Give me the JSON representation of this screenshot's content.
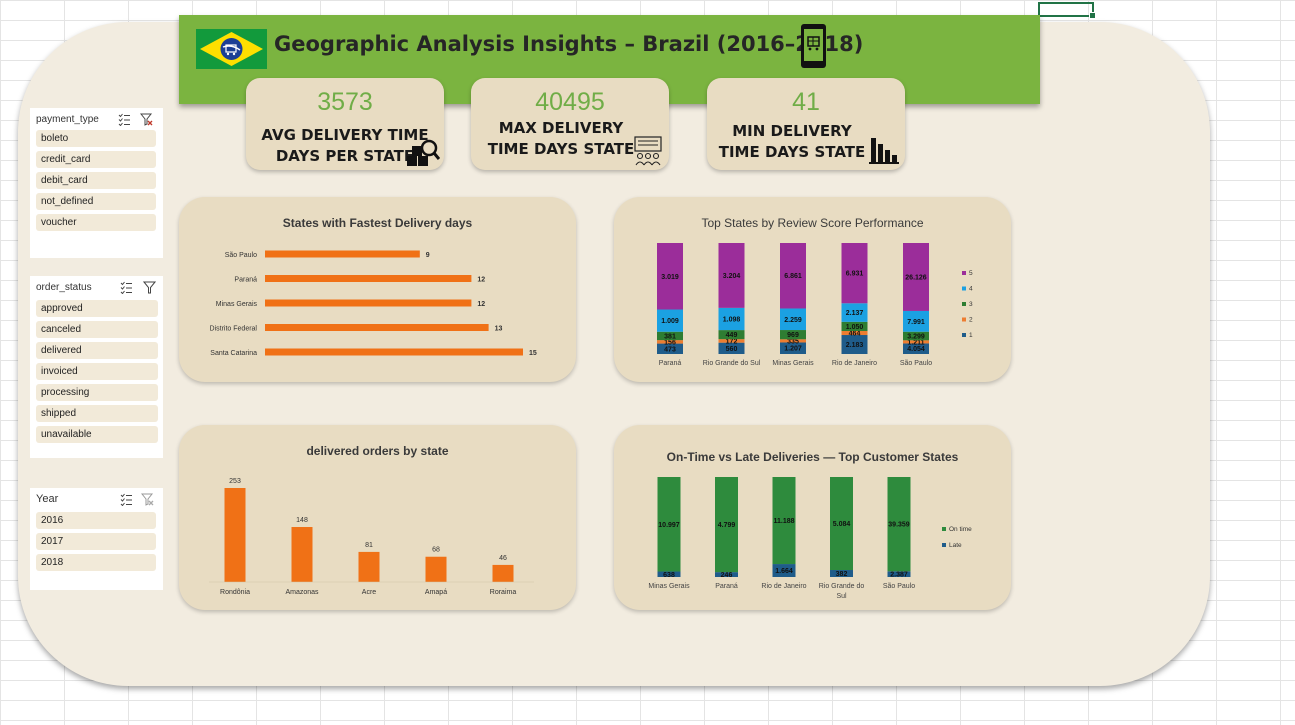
{
  "header": {
    "title": "Geographic Analysis Insights – Brazil (2016–2018)",
    "flag_icon": "brazil-flag-icon",
    "phone_icon": "mobile-shopping-icon",
    "color": "#7bb440"
  },
  "kpis": [
    {
      "value": "3573",
      "label_line1": "AVG DELIVERY TIME",
      "label_line2": "DAYS PER STATE",
      "icon": "boxes-search-icon"
    },
    {
      "value": "40495",
      "label_line1": "MAX DELIVERY",
      "label_line2": "TIME DAYS STATE",
      "icon": "presentation-group-icon"
    },
    {
      "value": "41",
      "label_line1": "MIN DELIVERY",
      "label_line2": "TIME DAYS  STATE",
      "icon": "bar-chart-decline-icon"
    }
  ],
  "slicers": {
    "payment_type": {
      "header": "payment_type",
      "items": [
        "boleto",
        "credit_card",
        "debit_card",
        "not_defined",
        "voucher"
      ]
    },
    "order_status": {
      "header": "order_status",
      "items": [
        "approved",
        "canceled",
        "delivered",
        "invoiced",
        "processing",
        "shipped",
        "unavailable"
      ]
    },
    "year": {
      "header": "Year",
      "items": [
        "2016",
        "2017",
        "2018"
      ]
    }
  },
  "chart_data": [
    {
      "type": "bar",
      "orientation": "horizontal",
      "title": "States with Fastest Delivery days",
      "categories": [
        "São Paulo",
        "Paraná",
        "Minas Gerais",
        "Distrito Federal",
        "Santa Catarina"
      ],
      "values": [
        9,
        12,
        12,
        13,
        15
      ],
      "color": "#f07116"
    },
    {
      "type": "bar",
      "stacked": true,
      "title": "Top States by Review Score Performance",
      "categories": [
        "Paraná",
        "Rio Grande do Sul",
        "Minas Gerais",
        "Rio de Janeiro",
        "São Paulo"
      ],
      "series": [
        {
          "name": "1",
          "color": "#1f5c8a",
          "values": [
            473,
            560,
            1207,
            2183,
            4054
          ],
          "labels": [
            "473",
            "560",
            "1.207",
            "2.183",
            "4.054"
          ]
        },
        {
          "name": "2",
          "color": "#ed7d31",
          "values": [
            156,
            172,
            335,
            464,
            1211
          ],
          "labels": [
            "156",
            "172",
            "335",
            "464",
            "1.211"
          ]
        },
        {
          "name": "3",
          "color": "#2e7d32",
          "values": [
            381,
            449,
            969,
            1050,
            3299
          ],
          "labels": [
            "381",
            "449",
            "969",
            "1.050",
            "3.299"
          ]
        },
        {
          "name": "4",
          "color": "#1ba1e2",
          "values": [
            1009,
            1098,
            2259,
            2137,
            7991
          ],
          "labels": [
            "1.009",
            "1.098",
            "2.259",
            "2.137",
            "7.991"
          ]
        },
        {
          "name": "5",
          "color": "#9b2d9a",
          "values": [
            3019,
            3204,
            6861,
            6931,
            26126
          ],
          "labels": [
            "3.019",
            "3.204",
            "6.861",
            "6.931",
            "26.126"
          ]
        }
      ],
      "legend": "right"
    },
    {
      "type": "bar",
      "title": "delivered orders by state",
      "categories": [
        "Rondônia",
        "Amazonas",
        "Acre",
        "Amapá",
        "Roraima"
      ],
      "values": [
        253,
        148,
        81,
        68,
        46
      ],
      "color": "#f07116"
    },
    {
      "type": "bar",
      "stacked": true,
      "title": "On-Time vs Late Deliveries — Top Customer States",
      "categories": [
        "Minas Gerais",
        "Paraná",
        "Rio de Janeiro",
        "Rio Grande do Sul",
        "São Paulo"
      ],
      "series": [
        {
          "name": "Late",
          "color": "#1f5c8a",
          "values": [
            638,
            246,
            1664,
            382,
            2387
          ],
          "labels": [
            "638",
            "246",
            "1.664",
            "382",
            "2.387"
          ]
        },
        {
          "name": "On time",
          "color": "#2e8b3d",
          "values": [
            10997,
            4799,
            11188,
            5084,
            39359
          ],
          "labels": [
            "10.997",
            "4.799",
            "11.188",
            "5.084",
            "39.359"
          ]
        }
      ],
      "legend": "right"
    }
  ]
}
